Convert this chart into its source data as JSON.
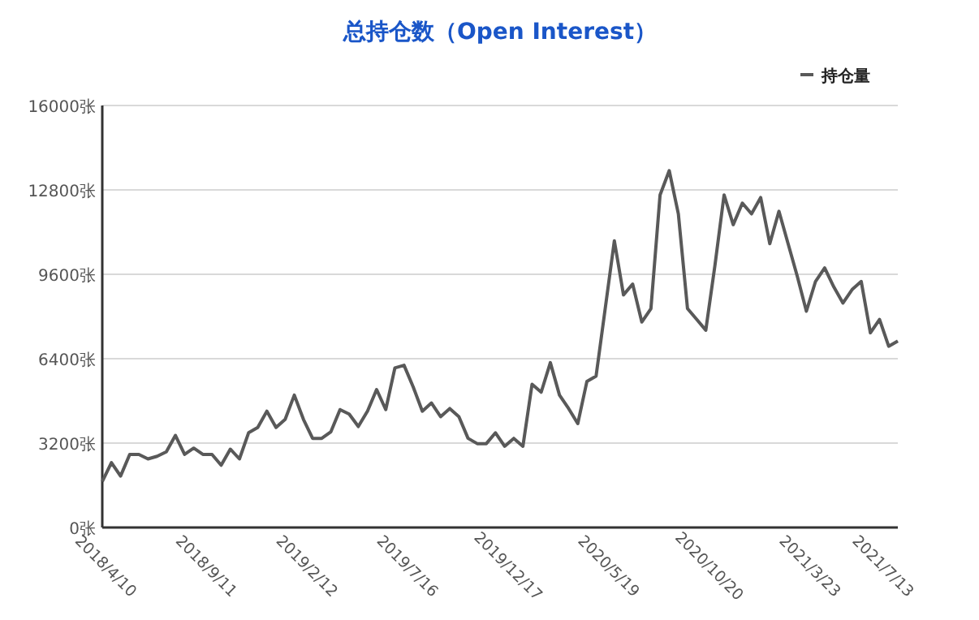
{
  "chart_data": {
    "type": "line",
    "title": "总持仓数（Open Interest）",
    "categories": [
      "2018/4/10",
      null,
      null,
      null,
      null,
      null,
      null,
      null,
      null,
      null,
      null,
      "2018/9/11",
      null,
      null,
      null,
      null,
      null,
      null,
      null,
      null,
      null,
      null,
      "2019/2/12",
      null,
      null,
      null,
      null,
      null,
      null,
      null,
      null,
      null,
      null,
      "2019/7/16",
      null,
      null,
      null,
      null,
      null,
      null,
      null,
      null,
      null,
      null,
      "2019/12/17",
      null,
      null,
      null,
      null,
      null,
      null,
      null,
      null,
      null,
      null,
      "2020/5/19",
      null,
      null,
      null,
      null,
      null,
      null,
      null,
      null,
      null,
      null,
      "2020/10/20",
      null,
      null,
      null,
      null,
      null,
      null,
      null,
      null,
      null,
      null,
      "2021/3/23",
      null,
      null,
      null,
      null,
      null,
      null,
      null,
      "2021/7/13",
      null,
      null
    ],
    "series": [
      {
        "name": "持仓量",
        "color": "#595959",
        "values": [
          1740,
          2460,
          1950,
          2770,
          2770,
          2600,
          2700,
          2870,
          3490,
          2770,
          3010,
          2770,
          2770,
          2360,
          2970,
          2600,
          3590,
          3790,
          4410,
          3790,
          4100,
          5020,
          4100,
          3380,
          3380,
          3630,
          4470,
          4300,
          3830,
          4410,
          5230,
          4470,
          6050,
          6150,
          5330,
          4410,
          4720,
          4200,
          4510,
          4200,
          3380,
          3180,
          3180,
          3590,
          3080,
          3380,
          3080,
          5430,
          5130,
          6250,
          5020,
          4510,
          3940,
          5540,
          5740,
          8300,
          10870,
          8820,
          9230,
          7790,
          8300,
          12610,
          13530,
          11890,
          8300,
          7890,
          7480,
          9940,
          12610,
          11480,
          12300,
          11890,
          12510,
          10760,
          11990,
          10760,
          9530,
          8200,
          9330,
          9840,
          9120,
          8510,
          9020,
          9330,
          7380,
          7890,
          6870,
          7070
        ]
      }
    ],
    "ylim": [
      0,
      16000
    ],
    "yticks": [
      {
        "value": 0,
        "label": "0张"
      },
      {
        "value": 3200,
        "label": "3200张"
      },
      {
        "value": 6400,
        "label": "6400张"
      },
      {
        "value": 9600,
        "label": "9600张"
      },
      {
        "value": 12800,
        "label": "12800张"
      },
      {
        "value": 16000,
        "label": "16000张"
      }
    ],
    "grid": "y",
    "legend": "top right",
    "marker": "none",
    "line_style": "solid"
  }
}
